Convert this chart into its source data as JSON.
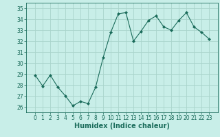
{
  "x": [
    0,
    1,
    2,
    3,
    4,
    5,
    6,
    7,
    8,
    9,
    10,
    11,
    12,
    13,
    14,
    15,
    16,
    17,
    18,
    19,
    20,
    21,
    22,
    23
  ],
  "y": [
    28.9,
    27.9,
    28.9,
    27.8,
    27.0,
    26.1,
    26.5,
    26.3,
    27.8,
    30.5,
    32.8,
    34.5,
    34.6,
    32.0,
    32.9,
    33.9,
    34.3,
    33.3,
    33.0,
    33.9,
    34.6,
    33.3,
    32.8,
    32.2
  ],
  "line_color": "#1a6b5a",
  "marker": "D",
  "marker_size": 2,
  "bg_color": "#c8eee8",
  "grid_color": "#aad4cc",
  "xlabel": "Humidex (Indice chaleur)",
  "ylim": [
    25.5,
    35.5
  ],
  "yticks": [
    26,
    27,
    28,
    29,
    30,
    31,
    32,
    33,
    34,
    35
  ],
  "xticks": [
    0,
    1,
    2,
    3,
    4,
    5,
    6,
    7,
    8,
    9,
    10,
    11,
    12,
    13,
    14,
    15,
    16,
    17,
    18,
    19,
    20,
    21,
    22,
    23
  ],
  "tick_color": "#1a6b5a",
  "label_fontsize": 6.5,
  "tick_fontsize": 5.5,
  "xlabel_fontsize": 7.0
}
